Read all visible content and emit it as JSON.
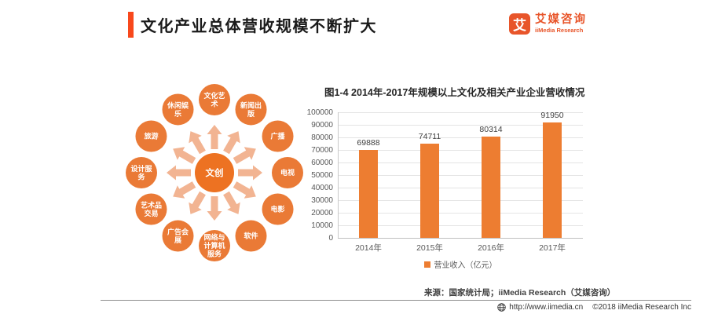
{
  "header": {
    "title": "文化产业总体营收规模不断扩大",
    "logo": {
      "badge": "艾",
      "name_cn": "艾媒咨询",
      "name_en": "iiMedia Research"
    }
  },
  "diagram": {
    "center_label": "文创",
    "satellites": [
      {
        "label": "文化艺术",
        "lines": [
          "文化艺",
          "术"
        ],
        "angle": 0
      },
      {
        "label": "新闻出版",
        "lines": [
          "新闻出",
          "版"
        ],
        "angle": 30
      },
      {
        "label": "广播",
        "lines": [
          "广播"
        ],
        "angle": 60
      },
      {
        "label": "电视",
        "lines": [
          "电视"
        ],
        "angle": 90
      },
      {
        "label": "电影",
        "lines": [
          "电影"
        ],
        "angle": 120
      },
      {
        "label": "软件",
        "lines": [
          "软件"
        ],
        "angle": 150
      },
      {
        "label": "网络与计算机服务",
        "lines": [
          "网络与",
          "计算机",
          "服务"
        ],
        "angle": 180
      },
      {
        "label": "广告会展",
        "lines": [
          "广告会",
          "展"
        ],
        "angle": 210
      },
      {
        "label": "艺术品交易",
        "lines": [
          "艺术品",
          "交易"
        ],
        "angle": 240
      },
      {
        "label": "设计服务",
        "lines": [
          "设计服",
          "务"
        ],
        "angle": 270
      },
      {
        "label": "旅游",
        "lines": [
          "旅游"
        ],
        "angle": 300
      },
      {
        "label": "休闲娱乐",
        "lines": [
          "休闲娱",
          "乐"
        ],
        "angle": 330
      }
    ]
  },
  "chart_data": {
    "type": "bar",
    "title": "图1-4 2014年-2017年规模以上文化及相关产业企业营收情况",
    "categories": [
      "2014年",
      "2015年",
      "2016年",
      "2017年"
    ],
    "values": [
      69888,
      74711,
      80314,
      91950
    ],
    "xlabel": "",
    "ylabel": "",
    "ylim": [
      0,
      100000
    ],
    "yticks": [
      0,
      10000,
      20000,
      30000,
      40000,
      50000,
      60000,
      70000,
      80000,
      90000,
      100000
    ],
    "grid": true,
    "legend": "营业收入（亿元）",
    "legend_position": "bottom"
  },
  "source_note": "来源：国家统计局；iiMedia Research（艾媒咨询）",
  "footer": {
    "url": "http://www.iimedia.cn",
    "copyright": "©2018  iiMedia Research Inc"
  },
  "colors": {
    "accent": "#F8481C",
    "logo": "#E8552A",
    "bar": "#ED7D31",
    "satellite": "#EA7A36",
    "center": "#ED7222",
    "arrow": "#F2B492"
  }
}
